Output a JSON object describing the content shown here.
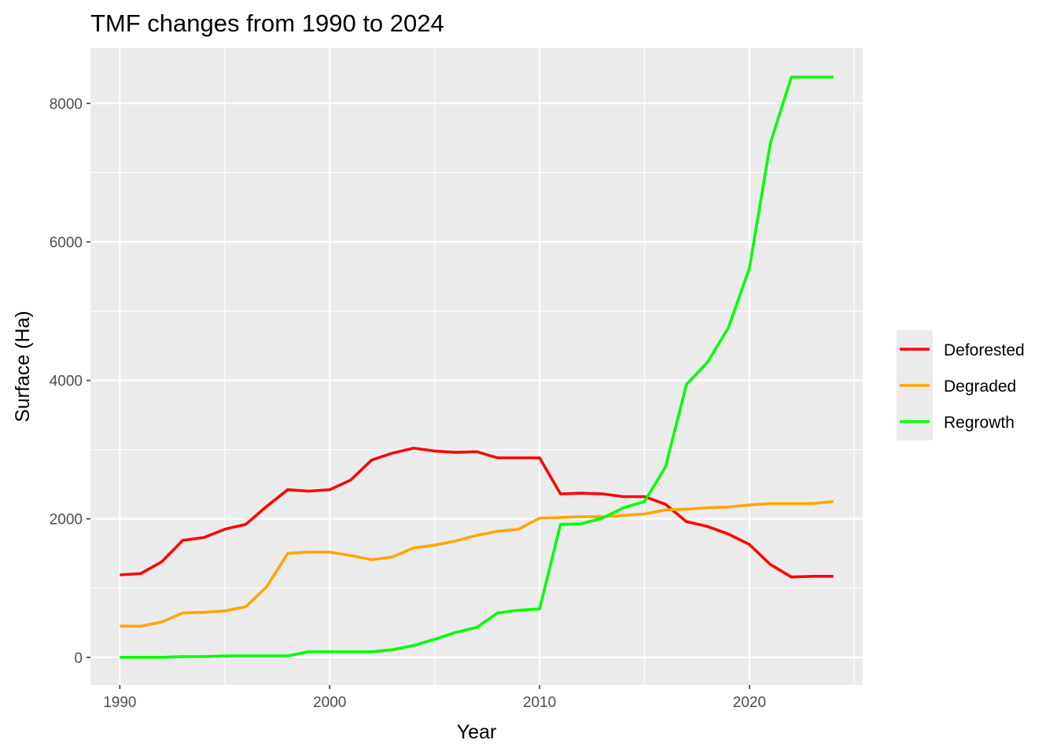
{
  "chart_data": {
    "type": "line",
    "title": "TMF changes from 1990 to 2024",
    "xlabel": "Year",
    "ylabel": "Surface (Ha)",
    "xlim": [
      1988.6,
      2025.4
    ],
    "ylim": [
      -400,
      8800
    ],
    "x_ticks": [
      1990,
      2000,
      2010,
      2020
    ],
    "x_minor": [
      1995,
      2005,
      2015,
      2025
    ],
    "y_ticks": [
      0,
      2000,
      4000,
      6000,
      8000
    ],
    "y_minor": [
      1000,
      3000,
      5000,
      7000
    ],
    "grid": true,
    "panel_background": "#ebebeb",
    "legend_position": "right",
    "x": [
      1990,
      1991,
      1992,
      1993,
      1994,
      1995,
      1996,
      1997,
      1998,
      1999,
      2000,
      2001,
      2002,
      2003,
      2004,
      2005,
      2006,
      2007,
      2008,
      2009,
      2010,
      2011,
      2012,
      2013,
      2014,
      2015,
      2016,
      2017,
      2018,
      2019,
      2020,
      2021,
      2022,
      2023,
      2024
    ],
    "series": [
      {
        "name": "Deforested",
        "color": "#ff0000",
        "values": [
          1190,
          1210,
          1380,
          1690,
          1730,
          1850,
          1920,
          2180,
          2420,
          2400,
          2420,
          2560,
          2850,
          2950,
          3020,
          2980,
          2960,
          2970,
          2880,
          2880,
          2880,
          2360,
          2370,
          2360,
          2320,
          2320,
          2210,
          1960,
          1890,
          1780,
          1630,
          1340,
          1160,
          1170,
          1170
        ]
      },
      {
        "name": "Degraded",
        "color": "#ffa500",
        "values": [
          450,
          450,
          510,
          640,
          650,
          670,
          730,
          1020,
          1500,
          1520,
          1520,
          1470,
          1410,
          1450,
          1580,
          1620,
          1680,
          1760,
          1820,
          1850,
          2010,
          2020,
          2030,
          2030,
          2050,
          2070,
          2130,
          2140,
          2160,
          2170,
          2200,
          2220,
          2220,
          2220,
          2250
        ]
      },
      {
        "name": "Regrowth",
        "color": "#00ff00",
        "values": [
          0,
          0,
          0,
          10,
          10,
          20,
          20,
          20,
          20,
          80,
          80,
          80,
          80,
          110,
          170,
          260,
          360,
          430,
          640,
          680,
          700,
          1920,
          1930,
          2010,
          2160,
          2250,
          2750,
          3940,
          4260,
          4760,
          5620,
          7430,
          8380,
          8380,
          8380
        ]
      }
    ]
  }
}
